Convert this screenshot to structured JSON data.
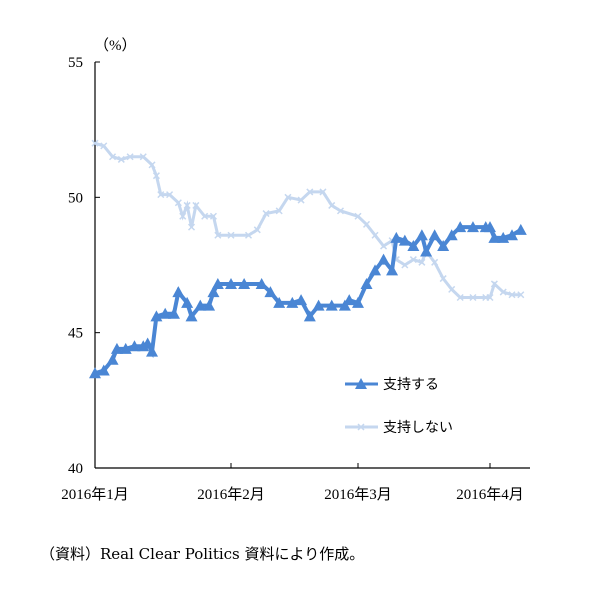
{
  "chart_data": {
    "type": "line",
    "ylabel": "（%）",
    "ylim": [
      40,
      55
    ],
    "yticks": [
      40,
      45,
      50,
      55
    ],
    "xtick_labels": [
      "2016年1月",
      "2016年2月",
      "2016年3月",
      "2016年4月"
    ],
    "xtick_dates": [
      "2016-01-01",
      "2016-02-01",
      "2016-03-01",
      "2016-04-01"
    ],
    "grid": false,
    "legend_placement": "lower-right",
    "series": [
      {
        "name": "支持する",
        "color": "#4a86d4",
        "marker": "triangle",
        "points": [
          [
            "2016-01-01",
            43.5
          ],
          [
            "2016-01-03",
            43.6
          ],
          [
            "2016-01-05",
            44.0
          ],
          [
            "2016-01-06",
            44.4
          ],
          [
            "2016-01-08",
            44.4
          ],
          [
            "2016-01-10",
            44.5
          ],
          [
            "2016-01-12",
            44.5
          ],
          [
            "2016-01-13",
            44.6
          ],
          [
            "2016-01-14",
            44.3
          ],
          [
            "2016-01-15",
            45.6
          ],
          [
            "2016-01-17",
            45.7
          ],
          [
            "2016-01-19",
            45.7
          ],
          [
            "2016-01-20",
            46.5
          ],
          [
            "2016-01-22",
            46.1
          ],
          [
            "2016-01-23",
            45.6
          ],
          [
            "2016-01-25",
            46.0
          ],
          [
            "2016-01-27",
            46.0
          ],
          [
            "2016-01-28",
            46.5
          ],
          [
            "2016-01-29",
            46.8
          ],
          [
            "2016-02-01",
            46.8
          ],
          [
            "2016-02-04",
            46.8
          ],
          [
            "2016-02-08",
            46.8
          ],
          [
            "2016-02-10",
            46.5
          ],
          [
            "2016-02-12",
            46.1
          ],
          [
            "2016-02-15",
            46.1
          ],
          [
            "2016-02-17",
            46.2
          ],
          [
            "2016-02-19",
            45.6
          ],
          [
            "2016-02-21",
            46.0
          ],
          [
            "2016-02-24",
            46.0
          ],
          [
            "2016-02-27",
            46.0
          ],
          [
            "2016-02-28",
            46.2
          ],
          [
            "2016-03-01",
            46.1
          ],
          [
            "2016-03-03",
            46.8
          ],
          [
            "2016-03-05",
            47.3
          ],
          [
            "2016-03-07",
            47.7
          ],
          [
            "2016-03-09",
            47.3
          ],
          [
            "2016-03-10",
            48.5
          ],
          [
            "2016-03-12",
            48.4
          ],
          [
            "2016-03-14",
            48.2
          ],
          [
            "2016-03-16",
            48.6
          ],
          [
            "2016-03-17",
            48.0
          ],
          [
            "2016-03-19",
            48.6
          ],
          [
            "2016-03-21",
            48.2
          ],
          [
            "2016-03-23",
            48.6
          ],
          [
            "2016-03-25",
            48.9
          ],
          [
            "2016-03-28",
            48.9
          ],
          [
            "2016-03-31",
            48.9
          ],
          [
            "2016-04-01",
            48.9
          ],
          [
            "2016-04-02",
            48.5
          ],
          [
            "2016-04-04",
            48.5
          ],
          [
            "2016-04-06",
            48.6
          ],
          [
            "2016-04-08",
            48.8
          ]
        ]
      },
      {
        "name": "支持しない",
        "color": "#c5d7ef",
        "marker": "x",
        "points": [
          [
            "2016-01-01",
            52.0
          ],
          [
            "2016-01-03",
            51.9
          ],
          [
            "2016-01-05",
            51.5
          ],
          [
            "2016-01-07",
            51.4
          ],
          [
            "2016-01-09",
            51.5
          ],
          [
            "2016-01-12",
            51.5
          ],
          [
            "2016-01-14",
            51.2
          ],
          [
            "2016-01-15",
            50.8
          ],
          [
            "2016-01-16",
            50.1
          ],
          [
            "2016-01-18",
            50.1
          ],
          [
            "2016-01-20",
            49.8
          ],
          [
            "2016-01-21",
            49.3
          ],
          [
            "2016-01-22",
            49.7
          ],
          [
            "2016-01-23",
            48.9
          ],
          [
            "2016-01-24",
            49.7
          ],
          [
            "2016-01-26",
            49.3
          ],
          [
            "2016-01-28",
            49.3
          ],
          [
            "2016-01-29",
            48.6
          ],
          [
            "2016-02-01",
            48.6
          ],
          [
            "2016-02-05",
            48.6
          ],
          [
            "2016-02-07",
            48.8
          ],
          [
            "2016-02-09",
            49.4
          ],
          [
            "2016-02-12",
            49.5
          ],
          [
            "2016-02-14",
            50.0
          ],
          [
            "2016-02-17",
            49.9
          ],
          [
            "2016-02-19",
            50.2
          ],
          [
            "2016-02-22",
            50.2
          ],
          [
            "2016-02-24",
            49.7
          ],
          [
            "2016-02-26",
            49.5
          ],
          [
            "2016-03-01",
            49.3
          ],
          [
            "2016-03-03",
            49.0
          ],
          [
            "2016-03-05",
            48.6
          ],
          [
            "2016-03-07",
            48.2
          ],
          [
            "2016-03-09",
            48.4
          ],
          [
            "2016-03-10",
            47.7
          ],
          [
            "2016-03-12",
            47.5
          ],
          [
            "2016-03-14",
            47.7
          ],
          [
            "2016-03-16",
            47.6
          ],
          [
            "2016-03-17",
            48.0
          ],
          [
            "2016-03-19",
            47.6
          ],
          [
            "2016-03-21",
            47.0
          ],
          [
            "2016-03-23",
            46.6
          ],
          [
            "2016-03-25",
            46.3
          ],
          [
            "2016-03-28",
            46.3
          ],
          [
            "2016-03-31",
            46.3
          ],
          [
            "2016-04-01",
            46.3
          ],
          [
            "2016-04-02",
            46.8
          ],
          [
            "2016-04-04",
            46.5
          ],
          [
            "2016-04-06",
            46.4
          ],
          [
            "2016-04-08",
            46.4
          ]
        ]
      }
    ]
  },
  "caption": "（資料）Real Clear Politics 資料により作成。"
}
